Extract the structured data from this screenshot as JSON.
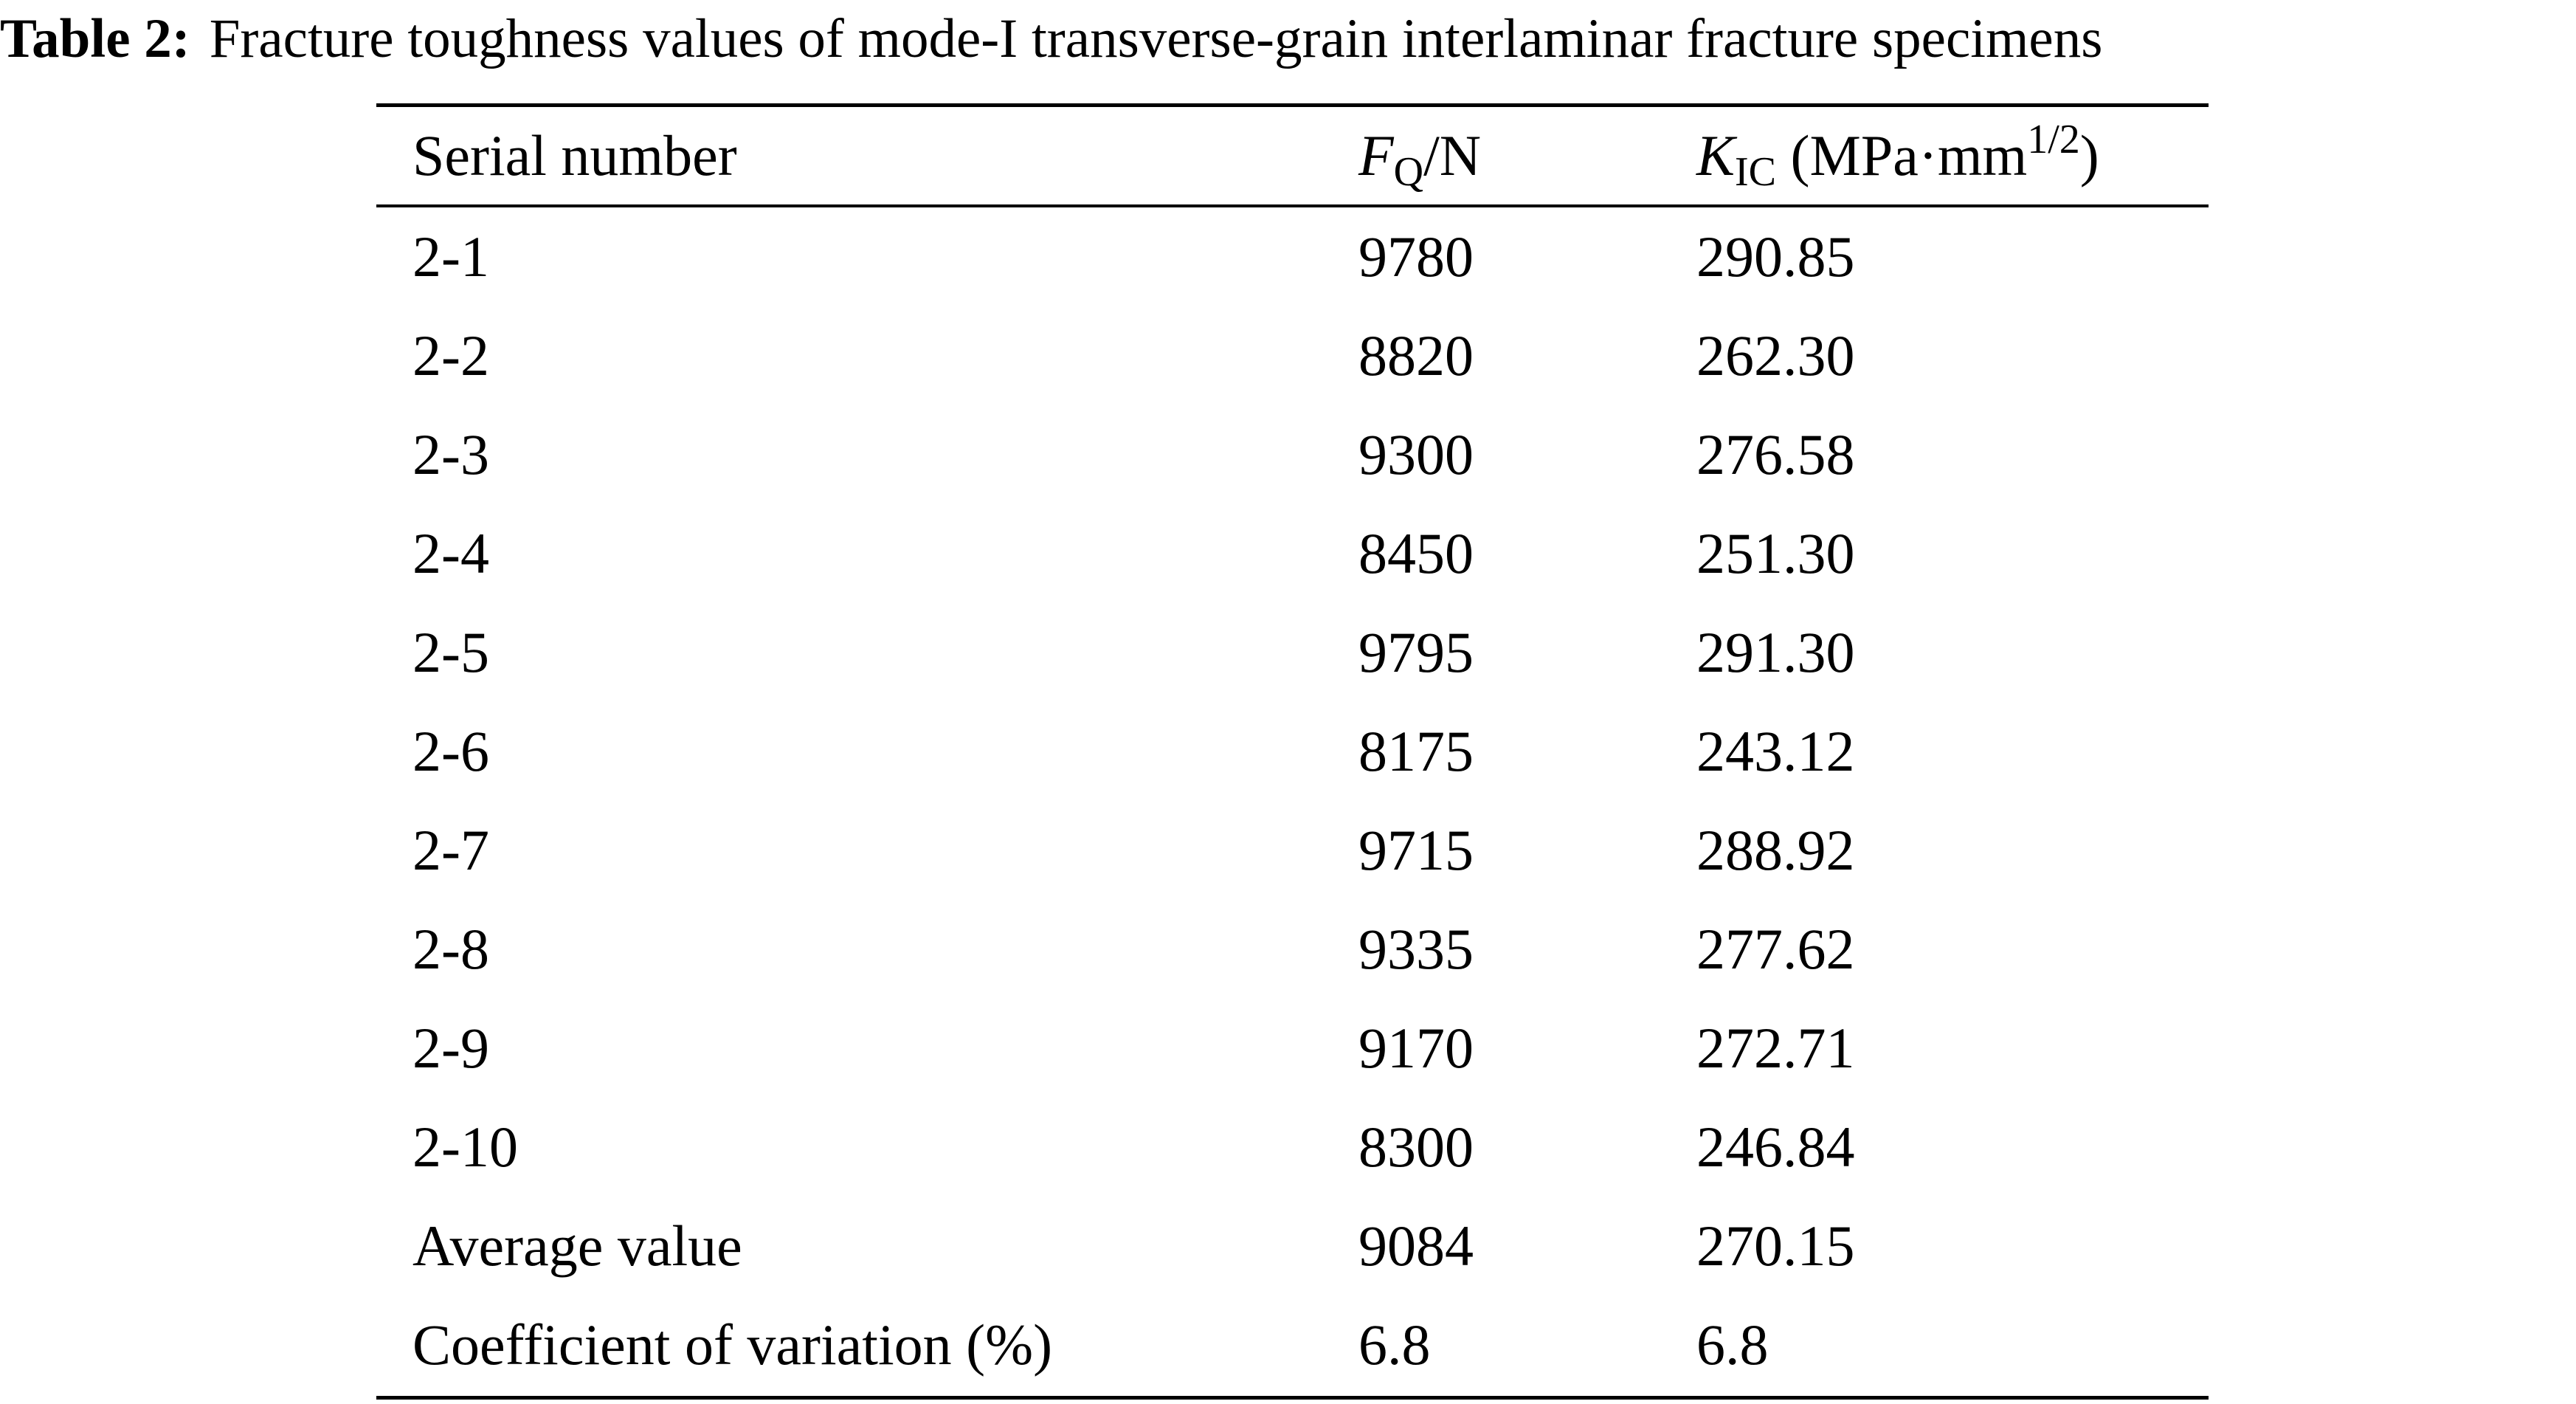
{
  "caption": {
    "label": "Table 2:",
    "text": "Fracture toughness values of mode-I transverse-grain interlaminar fracture specimens"
  },
  "table": {
    "headers": {
      "serial": "Serial number",
      "force": {
        "symbol": "F",
        "subscript": "Q",
        "unit": "/N"
      },
      "toughness": {
        "symbol": "K",
        "subscript": "IC",
        "unit_prefix": " (MPa·mm",
        "unit_exp": "1/2",
        "unit_suffix": ")"
      }
    },
    "rows": [
      {
        "serial": "2-1",
        "force": "9780",
        "toughness": "290.85"
      },
      {
        "serial": "2-2",
        "force": "8820",
        "toughness": "262.30"
      },
      {
        "serial": "2-3",
        "force": "9300",
        "toughness": "276.58"
      },
      {
        "serial": "2-4",
        "force": "8450",
        "toughness": "251.30"
      },
      {
        "serial": "2-5",
        "force": "9795",
        "toughness": "291.30"
      },
      {
        "serial": "2-6",
        "force": "8175",
        "toughness": "243.12"
      },
      {
        "serial": "2-7",
        "force": "9715",
        "toughness": "288.92"
      },
      {
        "serial": "2-8",
        "force": "9335",
        "toughness": "277.62"
      },
      {
        "serial": "2-9",
        "force": "9170",
        "toughness": "272.71"
      },
      {
        "serial": "2-10",
        "force": "8300",
        "toughness": "246.84"
      },
      {
        "serial": "Average value",
        "force": "9084",
        "toughness": "270.15"
      },
      {
        "serial": "Coefficient of variation (%)",
        "force": "6.8",
        "toughness": "6.8"
      }
    ]
  }
}
